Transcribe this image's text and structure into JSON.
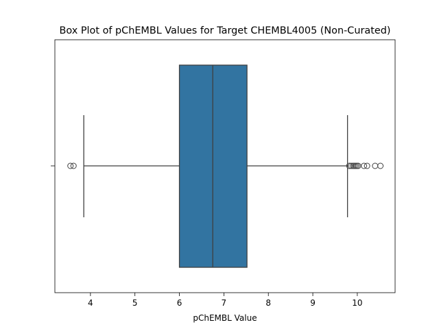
{
  "chart_data": {
    "type": "box",
    "title": "Box Plot of pChEMBL Values for Target CHEMBL4005 (Non-Curated)",
    "xlabel": "pChEMBL Value",
    "ylabel": "",
    "xlim": [
      3.2,
      10.85
    ],
    "xticks": [
      4,
      5,
      6,
      7,
      8,
      9,
      10
    ],
    "grid": false,
    "color": "#3274a1",
    "series": [
      {
        "whisker_low": 3.85,
        "q1": 6.0,
        "median": 6.75,
        "q3": 7.52,
        "whisker_high": 9.78,
        "outliers": [
          3.55,
          3.62,
          9.82,
          9.86,
          9.9,
          9.93,
          9.96,
          9.99,
          10.02,
          10.15,
          10.22,
          10.4,
          10.52
        ]
      }
    ]
  }
}
